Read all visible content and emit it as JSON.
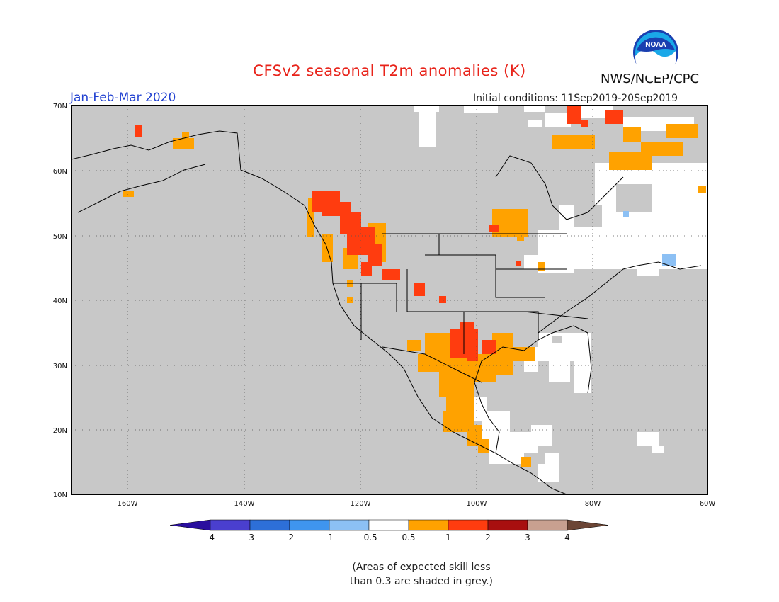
{
  "header": {
    "title": "CFSv2 seasonal T2m anomalies (K)",
    "period": "Jan-Feb-Mar 2020",
    "initial_conditions": "Initial conditions: 11Sep2019-20Sep2019",
    "agency": "NWS/NCEP/CPC",
    "logo_text": "NOAA"
  },
  "map": {
    "lat_labels": [
      "70N",
      "60N",
      "50N",
      "40N",
      "30N",
      "20N",
      "10N"
    ],
    "lon_labels": [
      "160W",
      "140W",
      "120W",
      "100W",
      "80W",
      "60W"
    ],
    "background_color": "#c8c8c8",
    "gridline_style": "dotted"
  },
  "colorbar": {
    "labels": [
      "-4",
      "-3",
      "-2",
      "-1",
      "-0.5",
      "0.5",
      "1",
      "2",
      "3",
      "4"
    ],
    "colors": [
      "#2a0f9e",
      "#4a3fcf",
      "#2d6fd8",
      "#3f95ef",
      "#8cc0f4",
      "#ffffff",
      "#ffa200",
      "#ff3c0f",
      "#a80f0f",
      "#c8a090",
      "#6b4535"
    ]
  },
  "note": {
    "line1": "(Areas of expected skill less",
    "line2": "than 0.3 are shaded in grey.)"
  }
}
